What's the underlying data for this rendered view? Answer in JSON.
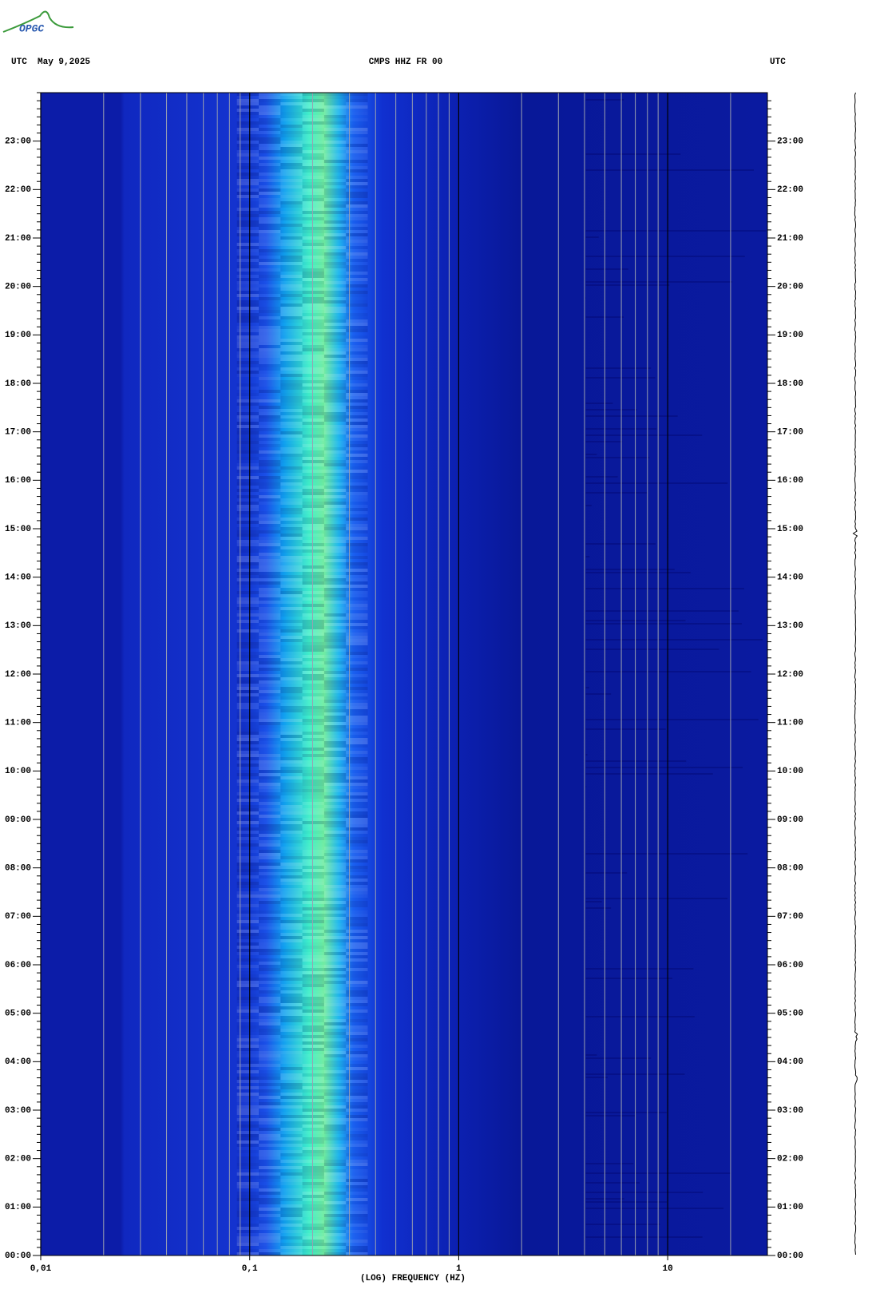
{
  "chart_data": {
    "type": "spectrogram",
    "title": "CMPS HHZ FR 00",
    "annotations": [
      "OPGC",
      "UTC  May 9,2025",
      "UTC"
    ],
    "xlabel": "(LOG) FREQUENCY (HZ)",
    "xscale": "log",
    "xlim": [
      0.01,
      30
    ],
    "xticks": [
      {
        "value": 0.01,
        "label": "0,01"
      },
      {
        "value": 0.1,
        "label": "0,1"
      },
      1,
      10
    ],
    "xminor": [
      0.02,
      0.03,
      0.04,
      0.05,
      0.06,
      0.07,
      0.08,
      0.09,
      0.2,
      0.3,
      0.4,
      0.5,
      0.6,
      0.7,
      0.8,
      0.9,
      2,
      3,
      4,
      5,
      6,
      7,
      8,
      9,
      20
    ],
    "ylim": [
      0,
      24
    ],
    "yticks": [
      {
        "value": 0,
        "label": "00:00"
      },
      {
        "value": 1,
        "label": "01:00"
      },
      {
        "value": 2,
        "label": "02:00"
      },
      {
        "value": 3,
        "label": "03:00"
      },
      {
        "value": 4,
        "label": "04:00"
      },
      {
        "value": 5,
        "label": "05:00"
      },
      {
        "value": 6,
        "label": "06:00"
      },
      {
        "value": 7,
        "label": "07:00"
      },
      {
        "value": 8,
        "label": "08:00"
      },
      {
        "value": 9,
        "label": "09:00"
      },
      {
        "value": 10,
        "label": "10:00"
      },
      {
        "value": 11,
        "label": "11:00"
      },
      {
        "value": 12,
        "label": "12:00"
      },
      {
        "value": 13,
        "label": "13:00"
      },
      {
        "value": 14,
        "label": "14:00"
      },
      {
        "value": 15,
        "label": "15:00"
      },
      {
        "value": 16,
        "label": "16:00"
      },
      {
        "value": 17,
        "label": "17:00"
      },
      {
        "value": 18,
        "label": "18:00"
      },
      {
        "value": 19,
        "label": "19:00"
      },
      {
        "value": 20,
        "label": "20:00"
      },
      {
        "value": 21,
        "label": "21:00"
      },
      {
        "value": 22,
        "label": "22:00"
      },
      {
        "value": 23,
        "label": "23:00"
      }
    ],
    "grid": true
  }
}
